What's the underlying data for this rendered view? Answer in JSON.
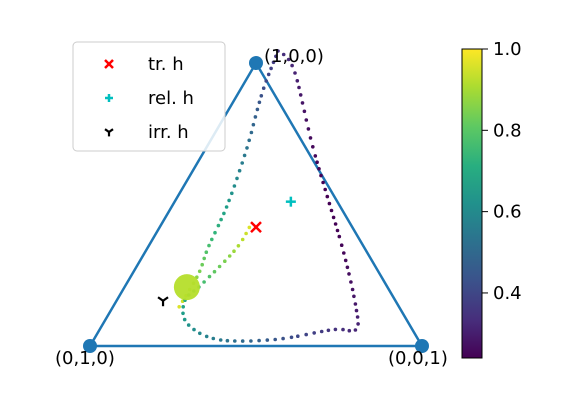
{
  "chart_data": {
    "type": "scatter",
    "title": "",
    "xlabel": "",
    "ylabel": "",
    "simplex": {
      "vertices": [
        {
          "label": "(1,0,0)",
          "coords": [
            1,
            0,
            0
          ]
        },
        {
          "label": "(0,1,0)",
          "coords": [
            0,
            1,
            0
          ]
        },
        {
          "label": "(0,0,1)",
          "coords": [
            0,
            0,
            1
          ]
        }
      ],
      "edge_color": "#1f77b4"
    },
    "legend": {
      "placement": "upper-left",
      "entries": [
        {
          "label": "tr. h",
          "marker": "x",
          "color": "#ff0000"
        },
        {
          "label": "rel. h",
          "marker": "plus",
          "color": "#00bfbf"
        },
        {
          "label": "irr. h",
          "marker": "tri_down",
          "color": "#000000"
        }
      ]
    },
    "points": [
      {
        "name": "tr. h",
        "marker": "x",
        "color": "#ff0000",
        "coords": [
          0.42,
          0.29,
          0.29
        ]
      },
      {
        "name": "rel. h",
        "marker": "plus",
        "color": "#00bfbf",
        "coords": [
          0.51,
          0.14,
          0.35
        ]
      },
      {
        "name": "irr. h",
        "marker": "tri_down",
        "color": "#000000",
        "coords": [
          0.16,
          0.7,
          0.14
        ]
      }
    ],
    "trajectory": {
      "colormap": "viridis",
      "color_range": [
        0.24,
        1.0
      ],
      "path_xy": [
        [
          -0.4,
          0.12
        ],
        [
          -0.3,
          0.22
        ],
        [
          -0.25,
          0.3
        ],
        [
          -0.15,
          0.43
        ],
        [
          -0.05,
          0.6
        ],
        [
          0.03,
          0.77
        ],
        [
          0.1,
          0.88
        ],
        [
          0.12,
          0.9
        ],
        [
          0.2,
          0.84
        ],
        [
          0.3,
          0.6
        ],
        [
          0.45,
          0.3
        ],
        [
          0.52,
          0.12
        ],
        [
          0.52,
          0.05
        ],
        [
          0.4,
          0.05
        ],
        [
          0.1,
          0.02
        ],
        [
          -0.2,
          0.02
        ],
        [
          -0.36,
          0.07
        ],
        [
          -0.37,
          0.14
        ],
        [
          -0.28,
          0.19
        ],
        [
          -0.1,
          0.3
        ],
        [
          -0.02,
          0.38
        ]
      ],
      "glow_point_xy": [
        -0.36,
        0.18
      ]
    },
    "colorbar": {
      "cmap": "viridis",
      "range": [
        0.24,
        1.0
      ],
      "ticks": [
        "0.4",
        "0.6",
        "0.8",
        "1.0"
      ],
      "tick_values": [
        0.4,
        0.6,
        0.8,
        1.0
      ]
    },
    "grid": false,
    "axes_visible": false
  }
}
